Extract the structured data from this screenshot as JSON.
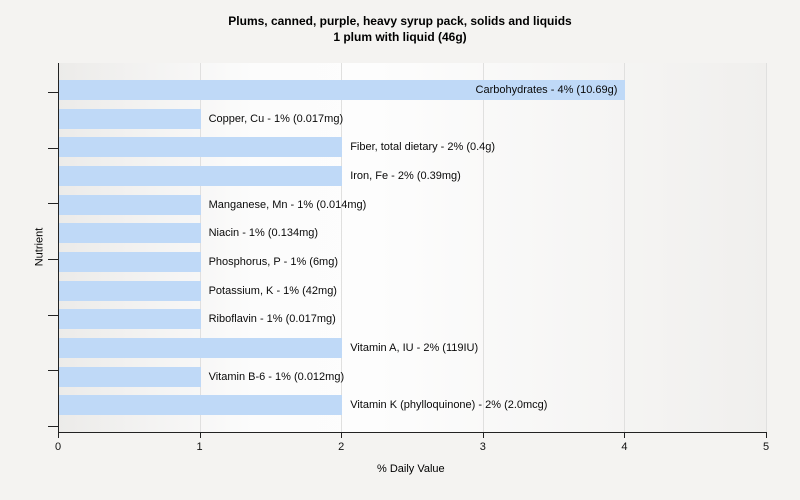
{
  "title": {
    "line1": "Plums, canned, purple, heavy syrup pack, solids and liquids",
    "line2": "1 plum with liquid (46g)"
  },
  "chart_data": {
    "type": "bar",
    "orientation": "horizontal",
    "title": "Plums, canned, purple, heavy syrup pack, solids and liquids — 1 plum with liquid (46g)",
    "xlabel": "% Daily Value",
    "ylabel": "Nutrient",
    "xlim": [
      0,
      5
    ],
    "xticks": [
      "0",
      "1",
      "2",
      "3",
      "4",
      "5"
    ],
    "grid": "vertical",
    "legend": "none",
    "categories": [
      "Carbohydrates",
      "Copper, Cu",
      "Fiber, total dietary",
      "Iron, Fe",
      "Manganese, Mn",
      "Niacin",
      "Phosphorus, P",
      "Potassium, K",
      "Riboflavin",
      "Vitamin A, IU",
      "Vitamin B-6",
      "Vitamin K (phylloquinone)"
    ],
    "values": [
      4,
      1,
      2,
      2,
      1,
      1,
      1,
      1,
      1,
      2,
      1,
      2
    ],
    "bar_labels": [
      "Carbohydrates - 4% (10.69g)",
      "Copper, Cu - 1% (0.017mg)",
      "Fiber, total dietary - 2% (0.4g)",
      "Iron, Fe - 2% (0.39mg)",
      "Manganese, Mn - 1% (0.014mg)",
      "Niacin - 1% (0.134mg)",
      "Phosphorus, P - 1% (6mg)",
      "Potassium, K - 1% (42mg)",
      "Riboflavin - 1% (0.017mg)",
      "Vitamin A, IU - 2% (119IU)",
      "Vitamin B-6 - 1% (0.012mg)",
      "Vitamin K (phylloquinone) - 2% (2.0mcg)"
    ],
    "colors": {
      "bar": "#bfd9f7",
      "gridline": "#e0e0df",
      "axis": "#222222",
      "page_bg": "#f4f3f1",
      "text": "#0a0a0a"
    }
  }
}
